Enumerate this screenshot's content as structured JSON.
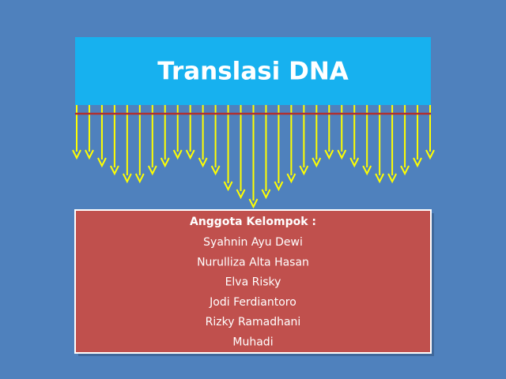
{
  "title": "Translasi DNA",
  "members_box": {
    "heading": "Anggota Kelompok :",
    "members": [
      "Syahnin Ayu Dewi",
      "Nurulliza Alta Hasan",
      "Elva Risky",
      "Jodi Ferdiantoro",
      "Rizky Ramadhani",
      "Muhadi"
    ]
  }
}
